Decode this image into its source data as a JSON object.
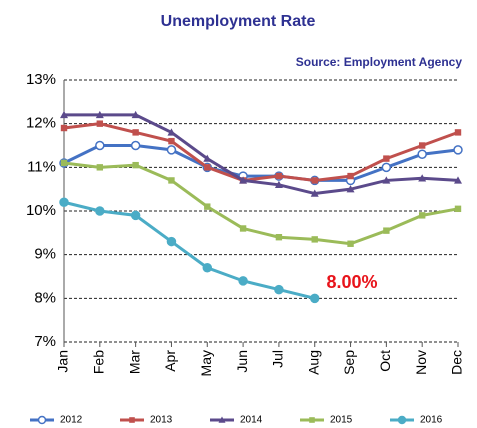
{
  "chart_data": {
    "type": "line",
    "title": "Unemployment Rate",
    "subtitle": "Source: Employment Agency",
    "annotation": "8.00%",
    "categories": [
      "Jan",
      "Feb",
      "Mar",
      "Apr",
      "May",
      "Jun",
      "Jul",
      "Aug",
      "Sep",
      "Oct",
      "Nov",
      "Dec"
    ],
    "series": [
      {
        "name": "2012",
        "color": "#4472c4",
        "marker": "circle-open",
        "values": [
          11.1,
          11.5,
          11.5,
          11.4,
          11.0,
          10.8,
          10.8,
          10.7,
          10.7,
          11.0,
          11.3,
          11.4
        ]
      },
      {
        "name": "2013",
        "color": "#c0504d",
        "marker": "square",
        "values": [
          11.9,
          12.0,
          11.8,
          11.6,
          11.0,
          10.7,
          10.8,
          10.7,
          10.8,
          11.2,
          11.5,
          11.8
        ]
      },
      {
        "name": "2014",
        "color": "#5b4a8b",
        "marker": "triangle",
        "values": [
          12.2,
          12.2,
          12.2,
          11.8,
          11.2,
          10.7,
          10.6,
          10.4,
          10.5,
          10.7,
          10.75,
          10.7
        ]
      },
      {
        "name": "2015",
        "color": "#9bbb59",
        "marker": "square",
        "values": [
          11.1,
          11.0,
          11.05,
          10.7,
          10.1,
          9.6,
          9.4,
          9.35,
          9.25,
          9.55,
          9.9,
          10.05
        ]
      },
      {
        "name": "2016",
        "color": "#4bacc6",
        "marker": "circle",
        "values": [
          10.2,
          10.0,
          9.9,
          9.3,
          8.7,
          8.4,
          8.2,
          8.0,
          null,
          null,
          null,
          null
        ]
      }
    ],
    "ylim": [
      7,
      13
    ],
    "yticks": [
      {
        "value": 7,
        "label": "7%"
      },
      {
        "value": 8,
        "label": "8%"
      },
      {
        "value": 9,
        "label": "9%"
      },
      {
        "value": 10,
        "label": "10%"
      },
      {
        "value": 11,
        "label": "11%"
      },
      {
        "value": 12,
        "label": "12%"
      },
      {
        "value": 13,
        "label": "13%"
      }
    ],
    "grid": true,
    "legend": "bottom"
  }
}
